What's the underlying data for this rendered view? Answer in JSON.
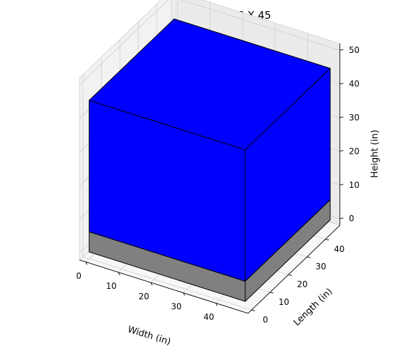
{
  "chart_data": {
    "type": "3d-box",
    "title": "Overpack: 48 X 46 X 45",
    "xlabel": "Width (in)",
    "ylabel": "Length (in)",
    "zlabel": "Height (in)",
    "xticks": [
      "0",
      "10",
      "20",
      "30",
      "40"
    ],
    "yticks": [
      "0",
      "10",
      "20",
      "30",
      "40"
    ],
    "zticks": [
      "0",
      "10",
      "20",
      "30",
      "40",
      "50"
    ],
    "xlim": [
      0,
      48
    ],
    "ylim": [
      0,
      46
    ],
    "zlim": [
      0,
      50
    ],
    "grid": true,
    "boxes": [
      {
        "name": "",
        "x": [
          0,
          48
        ],
        "y": [
          0,
          46
        ],
        "z": [
          0,
          6
        ],
        "color": "#808080"
      },
      {
        "name": "",
        "x": [
          0,
          48
        ],
        "y": [
          0,
          46
        ],
        "z": [
          6,
          45
        ],
        "color": "#0000ff"
      }
    ]
  }
}
